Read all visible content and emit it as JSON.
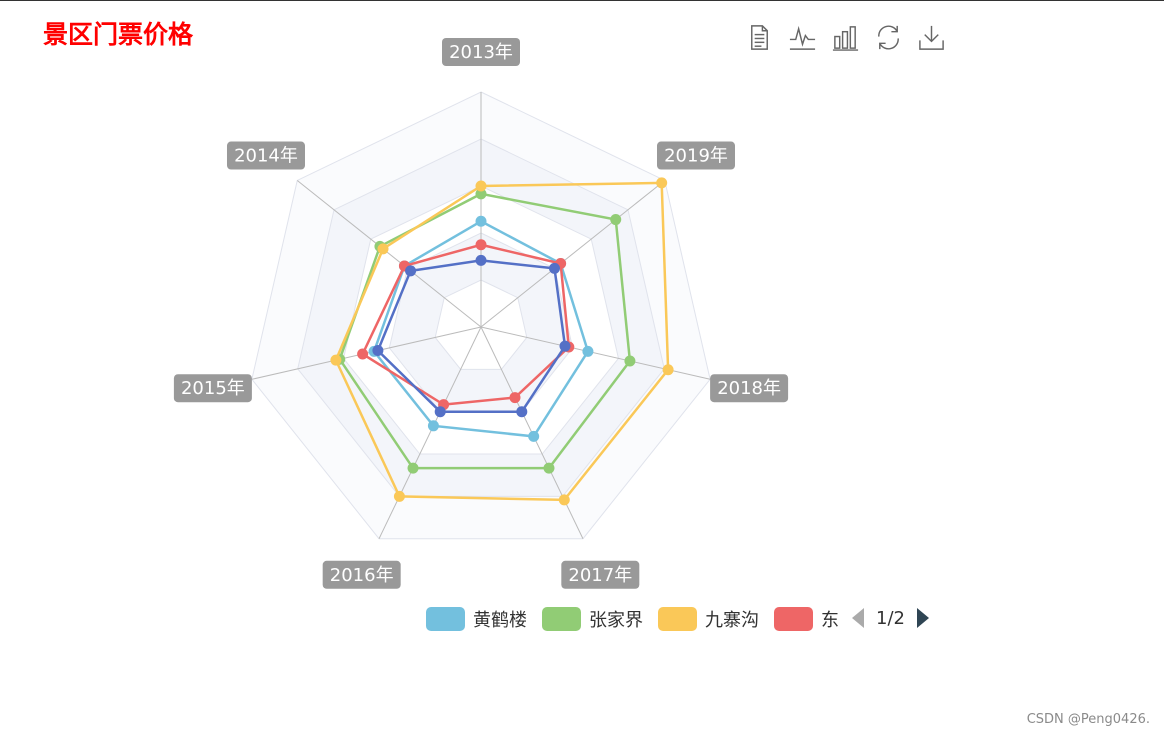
{
  "title": {
    "text": "景区门票价格",
    "color": "#ff0000"
  },
  "toolbox": {
    "items": [
      {
        "name": "data-view-icon"
      },
      {
        "name": "line-chart-icon"
      },
      {
        "name": "bar-chart-icon"
      },
      {
        "name": "restore-icon"
      },
      {
        "name": "download-icon"
      }
    ],
    "color": "#666666"
  },
  "legend": {
    "items": [
      {
        "label": "黄鹤楼",
        "color": "#73c0de"
      },
      {
        "label": "张家界",
        "color": "#91cc75"
      },
      {
        "label": "九寨沟",
        "color": "#fac858"
      },
      {
        "label": "东",
        "color": "#ee6666"
      }
    ],
    "page": "1/2"
  },
  "watermark": "CSDN @Peng0426.",
  "chart_data": {
    "type": "radar",
    "indicators": [
      "2013年",
      "2019年",
      "2018年",
      "2017年",
      "2016年",
      "2015年",
      "2014年"
    ],
    "max": 300,
    "split_number": 5,
    "series": [
      {
        "name": "黄鹤楼",
        "color": "#73c0de",
        "values": [
          135,
          130,
          140,
          155,
          140,
          140,
          125
        ]
      },
      {
        "name": "张家界",
        "color": "#91cc75",
        "values": [
          170,
          220,
          195,
          200,
          200,
          185,
          165
        ]
      },
      {
        "name": "九寨沟",
        "color": "#fac858",
        "values": [
          180,
          295,
          245,
          245,
          240,
          190,
          160
        ]
      },
      {
        "name": "",
        "color": "#ee6666",
        "values": [
          105,
          130,
          115,
          100,
          110,
          155,
          125
        ]
      },
      {
        "name": "",
        "color": "#5470c6",
        "values": [
          85,
          120,
          110,
          120,
          120,
          135,
          115
        ]
      }
    ]
  }
}
